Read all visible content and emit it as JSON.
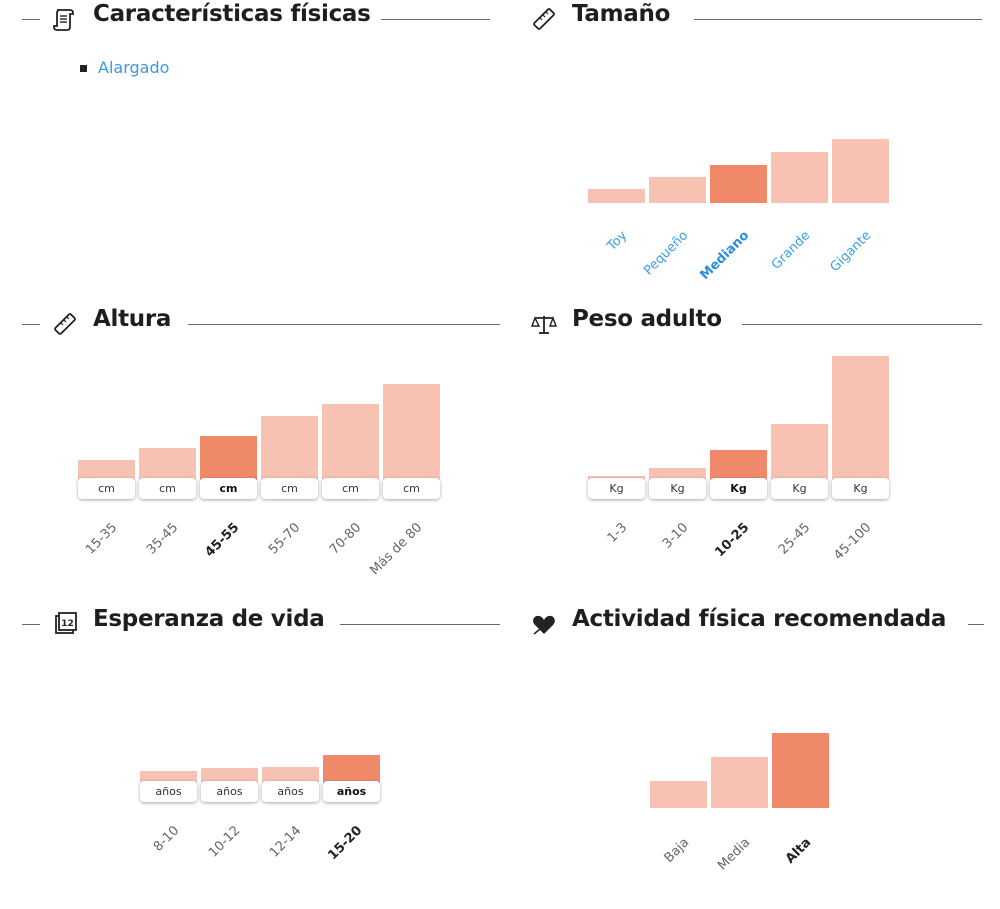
{
  "sections": {
    "fisicas": {
      "title": "Características físicas",
      "icon": "scroll-icon",
      "items": [
        "Alargado"
      ]
    },
    "tamano": {
      "title": "Tamaño",
      "icon": "ruler-icon",
      "active_index": 2,
      "categories": [
        "Toy",
        "Pequeño",
        "Mediano",
        "Grande",
        "Gigante"
      ],
      "levels": [
        1,
        2,
        3,
        4,
        5
      ]
    },
    "altura": {
      "title": "Altura",
      "icon": "ruler-icon",
      "active_index": 2,
      "unit": "cm",
      "categories": [
        "15-35",
        "35-45",
        "45-55",
        "55-70",
        "70-80",
        "Más de 80"
      ],
      "levels": [
        1,
        2,
        3,
        4,
        5,
        6
      ]
    },
    "peso": {
      "title": "Peso adulto",
      "icon": "scales-icon",
      "active_index": 2,
      "unit": "Kg",
      "categories": [
        "1-3",
        "3-10",
        "10-25",
        "25-45",
        "45-100"
      ],
      "levels": [
        1,
        2,
        3,
        4,
        5
      ]
    },
    "esperanza": {
      "title": "Esperanza de vida",
      "icon": "calendar-icon",
      "active_index": 3,
      "unit": "años",
      "categories": [
        "8-10",
        "10-12",
        "12-14",
        "15-20"
      ],
      "levels": [
        1,
        2,
        3,
        4
      ]
    },
    "actividad": {
      "title": "Actividad física recomendada",
      "icon": "heart-icon",
      "active_index": 2,
      "categories": [
        "Baja",
        "Media",
        "Alta"
      ],
      "levels": [
        1,
        2,
        3
      ]
    }
  },
  "colors": {
    "bar": "#f7c2b1",
    "bar_active": "#f0896a",
    "link": "#3aa0e8",
    "rule": "#6a6a6a"
  }
}
